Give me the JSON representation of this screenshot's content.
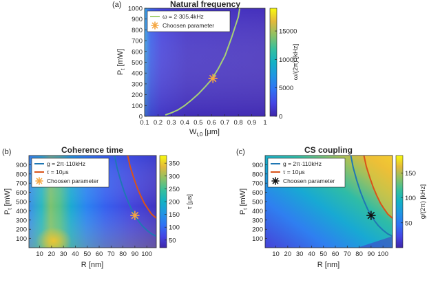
{
  "chart_data": [
    {
      "type": "heatmap",
      "panel_label": "(a)",
      "title": "Natural frequency",
      "xlabel": "W",
      "xlabel_sub": "t,0",
      "xlabel_unit": "[μm]",
      "ylabel": "P",
      "ylabel_sub": "t",
      "ylabel_unit": "[mW]",
      "xlim": [
        0.1,
        1.0
      ],
      "ylim": [
        0,
        1000
      ],
      "xticks": [
        "0.1",
        "0.2",
        "0.3",
        "0.4",
        "0.5",
        "0.6",
        "0.7",
        "0.8",
        "0.9",
        "1"
      ],
      "xtick_values": [
        0.1,
        0.2,
        0.3,
        0.4,
        0.5,
        0.6,
        0.7,
        0.8,
        0.9,
        1.0
      ],
      "yticks": [
        "0",
        "100",
        "200",
        "300",
        "400",
        "500",
        "600",
        "700",
        "800",
        "900",
        "1000"
      ],
      "ytick_values": [
        0,
        100,
        200,
        300,
        400,
        500,
        600,
        700,
        800,
        900,
        1000
      ],
      "colorbar": {
        "label": "ω/(2π) [kHz]",
        "range": [
          0,
          19000
        ],
        "ticks": [
          "0",
          "5000",
          "10000",
          "15000"
        ],
        "tick_values": [
          0,
          5000,
          10000,
          15000
        ],
        "colormap": "parula"
      },
      "series": [
        {
          "name": "ω = 2·305.4kHz",
          "color": "#a7d176",
          "points": [
            [
              0.255,
              12
            ],
            [
              0.3,
              32
            ],
            [
              0.35,
              60
            ],
            [
              0.4,
              100
            ],
            [
              0.45,
              150
            ],
            [
              0.5,
              205
            ],
            [
              0.55,
              270
            ],
            [
              0.6,
              340
            ],
            [
              0.65,
              440
            ],
            [
              0.7,
              560
            ],
            [
              0.75,
              730
            ],
            [
              0.8,
              920
            ],
            [
              0.81,
              1000
            ]
          ]
        }
      ],
      "marker": {
        "name": "Choosen parameter",
        "x": 0.61,
        "y": 350,
        "symbol": "asterisk",
        "color": "#f5a742"
      },
      "legend_position": "top-left"
    },
    {
      "type": "heatmap",
      "panel_label": "(b)",
      "title": "Coherence time",
      "xlabel": "R [nm]",
      "ylabel": "P",
      "ylabel_sub": "t",
      "ylabel_unit": "[mW]",
      "xlim": [
        1,
        108
      ],
      "ylim": [
        0,
        1000
      ],
      "xticks": [
        "10",
        "20",
        "30",
        "40",
        "50",
        "60",
        "70",
        "80",
        "90",
        "100"
      ],
      "xtick_values": [
        10,
        20,
        30,
        40,
        50,
        60,
        70,
        80,
        90,
        100
      ],
      "yticks": [
        "100",
        "200",
        "300",
        "400",
        "500",
        "600",
        "700",
        "800",
        "900"
      ],
      "ytick_values": [
        100,
        200,
        300,
        400,
        500,
        600,
        700,
        800,
        900
      ],
      "colorbar": {
        "label": "τ [μs]",
        "range": [
          20,
          380
        ],
        "ticks": [
          "50",
          "100",
          "150",
          "200",
          "250",
          "300",
          "350"
        ],
        "tick_values": [
          50,
          100,
          150,
          200,
          250,
          300,
          350
        ],
        "colormap": "parula"
      },
      "series": [
        {
          "name": "g = 2π·110kHz",
          "color": "#1f77b4",
          "points": [
            [
              73,
              1000
            ],
            [
              75,
              870
            ],
            [
              78,
              730
            ],
            [
              81,
              610
            ],
            [
              84,
              510
            ],
            [
              87,
              420
            ],
            [
              90,
              350
            ],
            [
              93,
              290
            ],
            [
              96,
              240
            ],
            [
              100,
              190
            ],
            [
              104,
              150
            ],
            [
              108,
              125
            ]
          ]
        },
        {
          "name": "τ = 10μs",
          "color": "#d95319",
          "points": [
            [
              84,
              1000
            ],
            [
              86,
              880
            ],
            [
              89,
              760
            ],
            [
              92,
              650
            ],
            [
              95,
              560
            ],
            [
              98,
              480
            ],
            [
              101,
              420
            ],
            [
              104,
              365
            ],
            [
              108,
              320
            ]
          ]
        }
      ],
      "marker": {
        "name": "Choosen parameter",
        "x": 90,
        "y": 350,
        "symbol": "asterisk",
        "color": "#f5a742"
      },
      "legend_position": "top-left"
    },
    {
      "type": "heatmap",
      "panel_label": "(c)",
      "title": "CS coupling",
      "xlabel": "R [nm]",
      "ylabel": "P",
      "ylabel_sub": "t",
      "ylabel_unit": "[mW]",
      "xlim": [
        1,
        108
      ],
      "ylim": [
        0,
        1000
      ],
      "xticks": [
        "10",
        "20",
        "30",
        "40",
        "50",
        "60",
        "70",
        "80",
        "90",
        "100"
      ],
      "xtick_values": [
        10,
        20,
        30,
        40,
        50,
        60,
        70,
        80,
        90,
        100
      ],
      "yticks": [
        "100",
        "200",
        "300",
        "400",
        "500",
        "600",
        "700",
        "800",
        "900"
      ],
      "ytick_values": [
        100,
        200,
        300,
        400,
        500,
        600,
        700,
        800,
        900
      ],
      "colorbar": {
        "label": "g/(2π) [kHz]",
        "range": [
          0,
          185
        ],
        "ticks": [
          "50",
          "100",
          "150"
        ],
        "tick_values": [
          50,
          100,
          150
        ],
        "colormap": "parula"
      },
      "series": [
        {
          "name": "g = 2π·110kHz",
          "color": "#1f77b4",
          "points": [
            [
              73,
              1000
            ],
            [
              75,
              870
            ],
            [
              78,
              730
            ],
            [
              81,
              610
            ],
            [
              84,
              510
            ],
            [
              87,
              420
            ],
            [
              90,
              350
            ],
            [
              93,
              290
            ],
            [
              96,
              240
            ],
            [
              100,
              190
            ],
            [
              104,
              150
            ],
            [
              108,
              125
            ]
          ]
        },
        {
          "name": "τ = 10μs",
          "color": "#d95319",
          "points": [
            [
              84,
              1000
            ],
            [
              86,
              880
            ],
            [
              89,
              760
            ],
            [
              92,
              650
            ],
            [
              95,
              560
            ],
            [
              98,
              480
            ],
            [
              101,
              420
            ],
            [
              104,
              365
            ],
            [
              108,
              320
            ]
          ]
        }
      ],
      "marker": {
        "name": "Choosen parameter",
        "x": 90,
        "y": 350,
        "symbol": "asterisk",
        "color": "#111111"
      },
      "legend_position": "top-left"
    }
  ]
}
